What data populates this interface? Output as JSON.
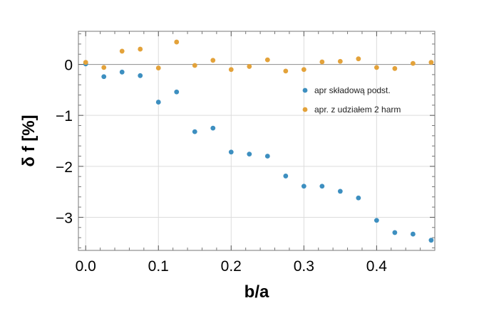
{
  "chart_data": {
    "type": "scatter",
    "xlabel": "b/a",
    "ylabel": "δ f [%]",
    "xlim": [
      -0.01,
      0.48
    ],
    "ylim": [
      -3.65,
      0.65
    ],
    "x_ticks": [
      0.0,
      0.1,
      0.2,
      0.3,
      0.4
    ],
    "x_tick_labels": [
      "0.0",
      "0.1",
      "0.2",
      "0.3",
      "0.4"
    ],
    "y_ticks": [
      0,
      -1,
      -2,
      -3
    ],
    "y_tick_labels": [
      "0",
      "−1",
      "−2",
      "−3"
    ],
    "grid": true,
    "legend_position": "right",
    "series": [
      {
        "name": "apr składową podst.",
        "color": "#3d8fc0",
        "x": [
          0.0,
          0.025,
          0.05,
          0.075,
          0.1,
          0.125,
          0.15,
          0.175,
          0.2,
          0.225,
          0.25,
          0.275,
          0.3,
          0.325,
          0.35,
          0.375,
          0.4,
          0.425,
          0.45,
          0.475
        ],
        "y": [
          0.01,
          -0.24,
          -0.15,
          -0.22,
          -0.74,
          -0.54,
          -1.32,
          -1.25,
          -1.72,
          -1.76,
          -1.8,
          -2.19,
          -2.39,
          -2.39,
          -2.49,
          -2.62,
          -3.06,
          -3.3,
          -3.33,
          -3.45
        ]
      },
      {
        "name": "apr. z udziałem 2 harm",
        "color": "#e3a23a",
        "x": [
          0.0,
          0.025,
          0.05,
          0.075,
          0.1,
          0.125,
          0.15,
          0.175,
          0.2,
          0.225,
          0.25,
          0.275,
          0.3,
          0.325,
          0.35,
          0.375,
          0.4,
          0.425,
          0.45,
          0.475
        ],
        "y": [
          0.04,
          -0.06,
          0.26,
          0.3,
          -0.07,
          0.44,
          -0.02,
          0.08,
          -0.1,
          -0.04,
          0.09,
          -0.13,
          -0.1,
          0.05,
          0.06,
          0.11,
          -0.06,
          -0.08,
          0.02,
          0.04
        ]
      }
    ]
  }
}
